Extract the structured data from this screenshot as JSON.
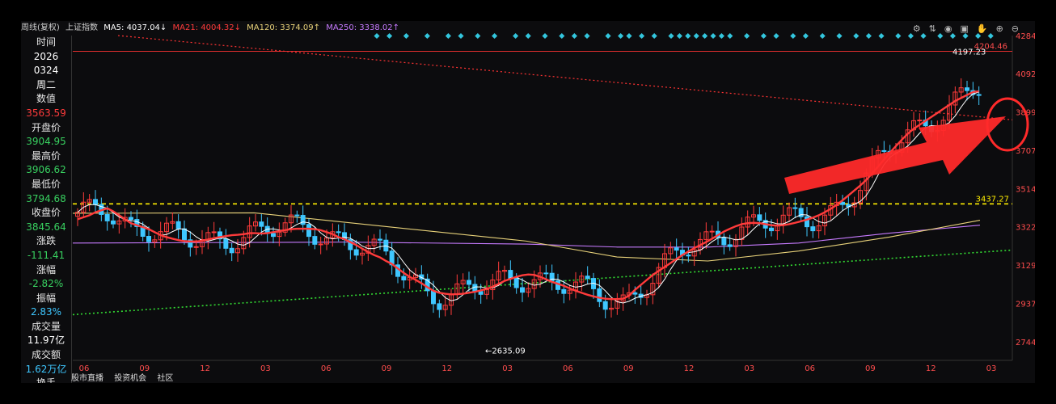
{
  "header": {
    "title": "周线(复权)",
    "index_name": "上证指数",
    "ma5": "MA5: 4037.04↓",
    "ma21": "MA21: 4004.32↓",
    "ma120": "MA120: 3374.09↑",
    "ma250": "MA250: 3338.02↑",
    "icons": [
      "settings-icon",
      "compare-icon",
      "eye-icon",
      "bag-icon",
      "hand-icon",
      "zoom-in-icon",
      "zoom-out-icon"
    ]
  },
  "info_panel": [
    {
      "label": "时间",
      "value": "2026"
    },
    {
      "label": "",
      "value": "0324"
    },
    {
      "label": "",
      "value": "周二"
    },
    {
      "label": "数值",
      "value": "3563.59"
    },
    {
      "label": "开盘价",
      "value": "3904.95"
    },
    {
      "label": "最高价",
      "value": "3906.62"
    },
    {
      "label": "最低价",
      "value": "3794.68"
    },
    {
      "label": "收盘价",
      "value": "3845.64"
    },
    {
      "label": "涨跌",
      "value": "-111.41"
    },
    {
      "label": "涨幅",
      "value": "-2.82%"
    },
    {
      "label": "振幅",
      "value": "2.83%"
    },
    {
      "label": "成交量",
      "value": "11.97亿"
    },
    {
      "label": "成交额",
      "value": "1.62万亿"
    },
    {
      "label": "换手",
      "value": ""
    }
  ],
  "bottom_tabs": [
    "股市直播",
    "投资机会",
    "社区"
  ],
  "colors": {
    "background": "#0c0c0e",
    "up": "#ff3b3b",
    "down": "#3ec7ff",
    "ma5": "#ffffff",
    "ma21": "#ff3b3b",
    "ma120": "#e8d27a",
    "ma250": "#c77bff",
    "support_line": "#33dd33",
    "resistance_line": "#ff3333",
    "level_line": "#ffee00",
    "annotation": "#ff2a2a"
  },
  "chart_data": {
    "type": "candlestick",
    "period": "weekly",
    "ylim": [
      2650,
      4284
    ],
    "y_ticks": [
      "4284",
      "4092",
      "3899",
      "3707",
      "3514",
      "3322",
      "3129",
      "2937",
      "2744"
    ],
    "x_ticks": [
      "06",
      "09",
      "12",
      "03",
      "06",
      "09",
      "12",
      "03",
      "06",
      "09",
      "12",
      "03",
      "06",
      "09",
      "12",
      "03"
    ],
    "high_label": "4204.46",
    "annotations": {
      "peak": "4197.23",
      "low": "2635.09",
      "level": "3437.27"
    },
    "horizontal_level": 3437.27,
    "high_level": 4204.46,
    "support_trendline": [
      [
        0,
        2880
      ],
      [
        1,
        3205
      ]
    ],
    "resistance_trendline": [
      [
        0,
        4284
      ],
      [
        1,
        3860
      ]
    ],
    "arrow": "pointing to latest weekly candle",
    "ma21": [
      3360,
      3370,
      3380,
      3395,
      3405,
      3415,
      3400,
      3380,
      3360,
      3340,
      3330,
      3320,
      3310,
      3295,
      3280,
      3270,
      3262,
      3255,
      3250,
      3248,
      3248,
      3252,
      3258,
      3265,
      3270,
      3275,
      3280,
      3282,
      3285,
      3290,
      3290,
      3288,
      3290,
      3295,
      3300,
      3305,
      3310,
      3312,
      3312,
      3312,
      3310,
      3305,
      3295,
      3285,
      3270,
      3260,
      3245,
      3230,
      3212,
      3195,
      3180,
      3168,
      3150,
      3135,
      3112,
      3090,
      3070,
      3055,
      3038,
      3018,
      3000,
      2990,
      2985,
      2982,
      2983,
      2985,
      2990,
      2995,
      3002,
      3010,
      3020,
      3035,
      3050,
      3060,
      3070,
      3078,
      3082,
      3080,
      3070,
      3058,
      3045,
      3035,
      3025,
      3012,
      3000,
      2990,
      2980,
      2972,
      2965,
      2960,
      2958,
      2958,
      2960,
      2975,
      3005,
      3030,
      3055,
      3080,
      3100,
      3120,
      3140,
      3160,
      3180,
      3198,
      3215,
      3230,
      3245,
      3262,
      3280,
      3298,
      3312,
      3325,
      3335,
      3340,
      3342,
      3340,
      3335,
      3330,
      3328,
      3330,
      3335,
      3342,
      3350,
      3358,
      3368,
      3380,
      3395,
      3412,
      3432,
      3455,
      3480,
      3505,
      3530,
      3558,
      3590,
      3625,
      3660,
      3695,
      3728,
      3760,
      3790,
      3815,
      3835,
      3855,
      3875,
      3895,
      3915,
      3935,
      3955,
      3970,
      3985,
      4000,
      4004
    ]
  }
}
